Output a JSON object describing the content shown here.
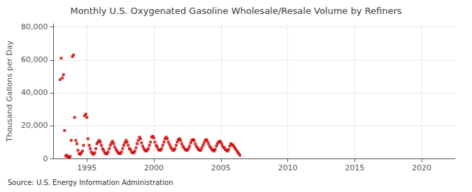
{
  "chart_data": {
    "type": "scatter",
    "title": "Monthly U.S. Oxygenated Gasoline Wholesale/Resale Volume by Refiners",
    "ylabel": "Thousand Gallons per Day",
    "annotations": [
      "Source: U.S. Energy Information Administration"
    ],
    "color": "#cc0000",
    "marker": "square",
    "grid": true,
    "xlim": [
      1992.5,
      2022.5
    ],
    "xticks": [
      1995,
      2000,
      2005,
      2010,
      2015,
      2020
    ],
    "ylim": [
      0,
      82000
    ],
    "yticks": [
      0,
      {
        "value": 20000,
        "label": "20,000"
      },
      {
        "value": 40000,
        "label": "40,000"
      },
      {
        "value": 60000,
        "label": "60,000"
      },
      {
        "value": 80000,
        "label": "80,000"
      }
    ],
    "x": [
      1993.0,
      1993.08,
      1993.17,
      1993.25,
      1993.33,
      1993.42,
      1993.5,
      1993.58,
      1993.67,
      1993.75,
      1993.83,
      1993.92,
      1994.0,
      1994.08,
      1994.17,
      1994.25,
      1994.33,
      1994.42,
      1994.5,
      1994.58,
      1994.67,
      1994.75,
      1994.83,
      1994.92,
      1995.0,
      1995.08,
      1995.17,
      1995.25,
      1995.33,
      1995.42,
      1995.5,
      1995.58,
      1995.67,
      1995.75,
      1995.83,
      1995.92,
      1996.0,
      1996.08,
      1996.17,
      1996.25,
      1996.33,
      1996.42,
      1996.5,
      1996.58,
      1996.67,
      1996.75,
      1996.83,
      1996.92,
      1997.0,
      1997.08,
      1997.17,
      1997.25,
      1997.33,
      1997.42,
      1997.5,
      1997.58,
      1997.67,
      1997.75,
      1997.83,
      1997.92,
      1998.0,
      1998.08,
      1998.17,
      1998.25,
      1998.33,
      1998.42,
      1998.5,
      1998.58,
      1998.67,
      1998.75,
      1998.83,
      1998.92,
      1999.0,
      1999.08,
      1999.17,
      1999.25,
      1999.33,
      1999.42,
      1999.5,
      1999.58,
      1999.67,
      1999.75,
      1999.83,
      1999.92,
      2000.0,
      2000.08,
      2000.17,
      2000.25,
      2000.33,
      2000.42,
      2000.5,
      2000.58,
      2000.67,
      2000.75,
      2000.83,
      2000.92,
      2001.0,
      2001.08,
      2001.17,
      2001.25,
      2001.33,
      2001.42,
      2001.5,
      2001.58,
      2001.67,
      2001.75,
      2001.83,
      2001.92,
      2002.0,
      2002.08,
      2002.17,
      2002.25,
      2002.33,
      2002.42,
      2002.5,
      2002.58,
      2002.67,
      2002.75,
      2002.83,
      2002.92,
      2003.0,
      2003.08,
      2003.17,
      2003.25,
      2003.33,
      2003.42,
      2003.5,
      2003.58,
      2003.67,
      2003.75,
      2003.83,
      2003.92,
      2004.0,
      2004.08,
      2004.17,
      2004.25,
      2004.33,
      2004.42,
      2004.5,
      2004.58,
      2004.67,
      2004.75,
      2004.83,
      2004.92,
      2005.0,
      2005.08,
      2005.17,
      2005.25,
      2005.33,
      2005.42,
      2005.5,
      2005.58,
      2005.67,
      2005.75,
      2005.83,
      2005.92,
      2006.0,
      2006.08,
      2006.17,
      2006.25,
      2006.33,
      2006.42
    ],
    "values": [
      48000,
      61000,
      49000,
      51000,
      17000,
      1500,
      2000,
      1000,
      800,
      1200,
      11000,
      62000,
      63000,
      25000,
      11000,
      9000,
      5000,
      3000,
      2500,
      3500,
      4500,
      8000,
      26000,
      27000,
      25000,
      12000,
      8000,
      6000,
      4000,
      3000,
      2500,
      3500,
      6000,
      9000,
      10000,
      11000,
      10000,
      8000,
      6000,
      5000,
      3500,
      3000,
      2800,
      4000,
      6000,
      8000,
      9500,
      10500,
      9000,
      7000,
      5500,
      4500,
      3500,
      3000,
      3000,
      4000,
      6000,
      8000,
      9500,
      11000,
      10000,
      8000,
      6000,
      5500,
      4000,
      3500,
      3500,
      4500,
      6500,
      9000,
      11000,
      13000,
      12000,
      9500,
      7500,
      6000,
      5000,
      4500,
      5000,
      6000,
      8000,
      10000,
      13000,
      13500,
      12500,
      10000,
      8000,
      7000,
      5500,
      5000,
      5000,
      6000,
      8000,
      10000,
      12000,
      13000,
      12000,
      10000,
      8500,
      7000,
      6000,
      5000,
      5000,
      6000,
      8000,
      10000,
      11500,
      12000,
      11000,
      9000,
      7500,
      6500,
      5500,
      5000,
      5000,
      6000,
      7500,
      9500,
      11000,
      11500,
      11000,
      9000,
      7500,
      6500,
      5500,
      5000,
      5000,
      6500,
      8000,
      9500,
      11000,
      11500,
      10500,
      9000,
      7500,
      6500,
      5500,
      5000,
      4500,
      5500,
      7500,
      9000,
      10000,
      10500,
      10000,
      8500,
      7000,
      6500,
      5500,
      5000,
      4500,
      5500,
      7500,
      9000,
      8500,
      8000,
      7000,
      6000,
      5000,
      4000,
      3000,
      2000
    ]
  }
}
